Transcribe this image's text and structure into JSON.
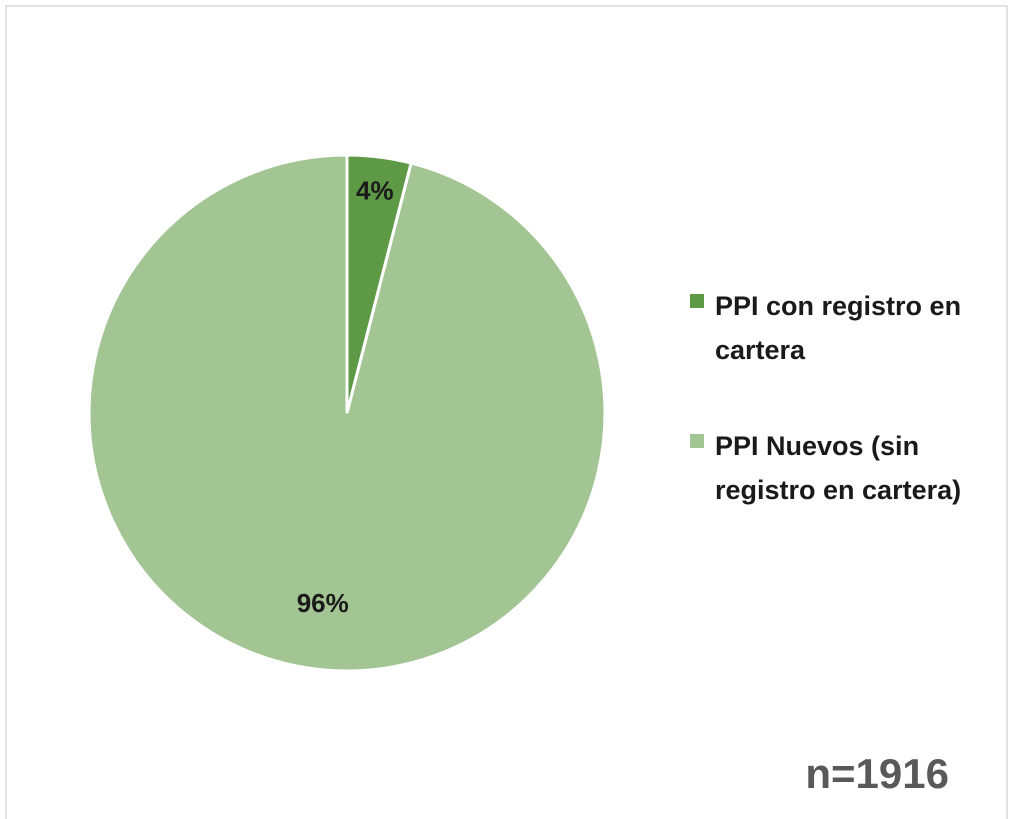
{
  "chart_data": {
    "type": "pie",
    "categories": [
      "PPI con registro en cartera",
      "PPI Nuevos (sin registro en cartera)"
    ],
    "values": [
      4,
      96
    ],
    "value_labels": [
      "4%",
      "96%"
    ],
    "colors": [
      "#5e9a46",
      "#a3c594"
    ],
    "legend": "right",
    "annotation": "n=1916"
  }
}
